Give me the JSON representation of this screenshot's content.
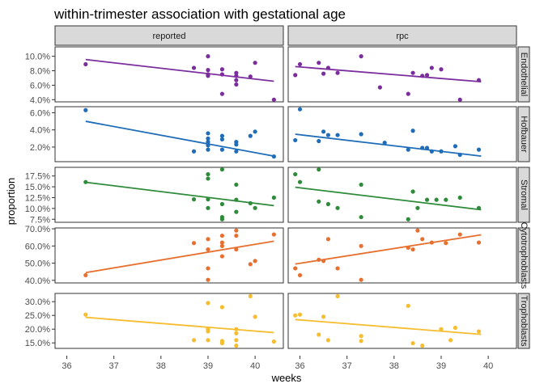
{
  "chart_data": {
    "type": "scatter",
    "title": "within-trimester association with gestational age",
    "xlabel": "weeks",
    "ylabel": "proportion",
    "xlim": [
      35.75,
      40.6
    ],
    "x_ticks": [
      "36",
      "37",
      "38",
      "39",
      "40"
    ],
    "x_tick_values": [
      36,
      37,
      38,
      39,
      40
    ],
    "columns": [
      "reported",
      "rpc"
    ],
    "grid": false,
    "facets": [
      {
        "row": "Endothelial",
        "color": "#7B2D9E",
        "ylim": [
          0.037,
          0.113
        ],
        "y_ticks": [
          0.04,
          0.06,
          0.08,
          0.1
        ],
        "y_tick_labels": [
          "4.0%",
          "6.0%",
          "8.0%",
          "10.0%"
        ],
        "panels": [
          {
            "column": "reported",
            "points": [
              [
                36.4,
                0.089
              ],
              [
                38.7,
                0.084
              ],
              [
                39.0,
                0.1
              ],
              [
                39.0,
                0.081
              ],
              [
                39.0,
                0.075
              ],
              [
                39.0,
                0.073
              ],
              [
                39.3,
                0.082
              ],
              [
                39.3,
                0.075
              ],
              [
                39.3,
                0.048
              ],
              [
                39.6,
                0.077
              ],
              [
                39.6,
                0.073
              ],
              [
                39.6,
                0.067
              ],
              [
                39.6,
                0.061
              ],
              [
                39.9,
                0.072
              ],
              [
                40.0,
                0.091
              ],
              [
                40.4,
                0.04
              ]
            ],
            "trend": [
              [
                36.4,
                0.0955
              ],
              [
                40.4,
                0.0655
              ]
            ]
          },
          {
            "column": "rpc",
            "points": [
              [
                35.9,
                0.074
              ],
              [
                36.0,
                0.089
              ],
              [
                36.4,
                0.091
              ],
              [
                36.5,
                0.076
              ],
              [
                36.6,
                0.084
              ],
              [
                36.8,
                0.077
              ],
              [
                37.3,
                0.1
              ],
              [
                37.7,
                0.057
              ],
              [
                38.3,
                0.048
              ],
              [
                38.4,
                0.077
              ],
              [
                38.6,
                0.073
              ],
              [
                38.7,
                0.074
              ],
              [
                38.8,
                0.084
              ],
              [
                39.0,
                0.082
              ],
              [
                39.4,
                0.04
              ],
              [
                39.8,
                0.067
              ]
            ],
            "trend": [
              [
                35.9,
                0.0858
              ],
              [
                39.85,
                0.0648
              ]
            ]
          }
        ]
      },
      {
        "row": "Hofbauer",
        "color": "#1F6DB8",
        "ylim": [
          0.003,
          0.067
        ],
        "y_ticks": [
          0.02,
          0.04,
          0.06
        ],
        "y_tick_labels": [
          "2.0%",
          "4.0%",
          "6.0%"
        ],
        "panels": [
          {
            "column": "reported",
            "points": [
              [
                36.4,
                0.063
              ],
              [
                38.7,
                0.015
              ],
              [
                39.0,
                0.036
              ],
              [
                39.0,
                0.03
              ],
              [
                39.0,
                0.026
              ],
              [
                39.0,
                0.022
              ],
              [
                39.0,
                0.017
              ],
              [
                39.3,
                0.033
              ],
              [
                39.3,
                0.029
              ],
              [
                39.3,
                0.017
              ],
              [
                39.6,
                0.026
              ],
              [
                39.6,
                0.023
              ],
              [
                39.6,
                0.015
              ],
              [
                39.9,
                0.033
              ],
              [
                40.0,
                0.038
              ],
              [
                40.4,
                0.009
              ]
            ],
            "trend": [
              [
                36.4,
                0.05
              ],
              [
                40.4,
                0.0095
              ]
            ]
          },
          {
            "column": "rpc",
            "points": [
              [
                35.9,
                0.028
              ],
              [
                36.0,
                0.064
              ],
              [
                36.4,
                0.027
              ],
              [
                36.5,
                0.038
              ],
              [
                36.6,
                0.034
              ],
              [
                36.8,
                0.034
              ],
              [
                37.3,
                0.035
              ],
              [
                37.8,
                0.025
              ],
              [
                38.3,
                0.017
              ],
              [
                38.4,
                0.039
              ],
              [
                38.6,
                0.019
              ],
              [
                38.7,
                0.019
              ],
              [
                38.8,
                0.015
              ],
              [
                39.0,
                0.015
              ],
              [
                39.3,
                0.021
              ],
              [
                39.4,
                0.011
              ],
              [
                39.8,
                0.017
              ]
            ],
            "trend": [
              [
                35.9,
                0.035
              ],
              [
                39.85,
                0.0095
              ]
            ]
          }
        ]
      },
      {
        "row": "Stromal",
        "color": "#2E8B3A",
        "ylim": [
          0.068,
          0.195
        ],
        "y_ticks": [
          0.075,
          0.1,
          0.125,
          0.15,
          0.175
        ],
        "y_tick_labels": [
          "7.5%",
          "10.0%",
          "12.5%",
          "15.0%",
          "17.5%"
        ],
        "panels": [
          {
            "column": "reported",
            "points": [
              [
                36.4,
                0.161
              ],
              [
                38.7,
                0.121
              ],
              [
                39.0,
                0.179
              ],
              [
                39.0,
                0.169
              ],
              [
                39.0,
                0.121
              ],
              [
                39.0,
                0.101
              ],
              [
                39.3,
                0.19
              ],
              [
                39.3,
                0.11
              ],
              [
                39.3,
                0.08
              ],
              [
                39.3,
                0.075
              ],
              [
                39.6,
                0.155
              ],
              [
                39.6,
                0.12
              ],
              [
                39.6,
                0.092
              ],
              [
                39.9,
                0.112
              ],
              [
                40.0,
                0.101
              ],
              [
                40.4,
                0.125
              ]
            ],
            "trend": [
              [
                36.4,
                0.1605
              ],
              [
                40.4,
                0.1065
              ]
            ]
          },
          {
            "column": "rpc",
            "points": [
              [
                35.9,
                0.179
              ],
              [
                36.0,
                0.161
              ],
              [
                36.4,
                0.19
              ],
              [
                36.4,
                0.116
              ],
              [
                36.6,
                0.11
              ],
              [
                36.8,
                0.101
              ],
              [
                37.3,
                0.08
              ],
              [
                37.3,
                0.155
              ],
              [
                38.3,
                0.075
              ],
              [
                38.4,
                0.139
              ],
              [
                38.5,
                0.101
              ],
              [
                38.7,
                0.12
              ],
              [
                38.9,
                0.12
              ],
              [
                39.1,
                0.12
              ],
              [
                39.4,
                0.125
              ],
              [
                39.8,
                0.101
              ]
            ],
            "trend": [
              [
                35.9,
                0.149
              ],
              [
                39.85,
                0.097
              ]
            ]
          }
        ]
      },
      {
        "row": "Cytotrophoblasts",
        "color": "#E8702E",
        "ylim": [
          0.385,
          0.705
        ],
        "y_ticks": [
          0.4,
          0.5,
          0.6,
          0.7
        ],
        "y_tick_labels": [
          "40.0%",
          "50.0%",
          "60.0%",
          "70.0%"
        ],
        "panels": [
          {
            "column": "reported",
            "points": [
              [
                36.4,
                0.43
              ],
              [
                38.7,
                0.617
              ],
              [
                39.0,
                0.64
              ],
              [
                39.0,
                0.58
              ],
              [
                39.0,
                0.47
              ],
              [
                39.0,
                0.403
              ],
              [
                39.3,
                0.66
              ],
              [
                39.3,
                0.62
              ],
              [
                39.3,
                0.6
              ],
              [
                39.3,
                0.54
              ],
              [
                39.6,
                0.69
              ],
              [
                39.6,
                0.66
              ],
              [
                39.6,
                0.58
              ],
              [
                39.9,
                0.494
              ],
              [
                40.0,
                0.513
              ],
              [
                40.4,
                0.667
              ]
            ],
            "trend": [
              [
                36.4,
                0.445
              ],
              [
                40.4,
                0.628
              ]
            ]
          },
          {
            "column": "rpc",
            "points": [
              [
                35.9,
                0.47
              ],
              [
                36.0,
                0.43
              ],
              [
                36.4,
                0.52
              ],
              [
                36.5,
                0.513
              ],
              [
                36.6,
                0.64
              ],
              [
                36.8,
                0.47
              ],
              [
                37.3,
                0.403
              ],
              [
                37.3,
                0.6
              ],
              [
                38.3,
                0.59
              ],
              [
                38.4,
                0.58
              ],
              [
                38.5,
                0.69
              ],
              [
                38.6,
                0.64
              ],
              [
                38.8,
                0.62
              ],
              [
                39.1,
                0.617
              ],
              [
                39.4,
                0.667
              ],
              [
                39.8,
                0.62
              ]
            ],
            "trend": [
              [
                35.9,
                0.495
              ],
              [
                39.85,
                0.665
              ]
            ]
          }
        ]
      },
      {
        "row": "Trophoblasts",
        "color": "#F5BD2F",
        "ylim": [
          0.13,
          0.33
        ],
        "y_ticks": [
          0.15,
          0.2,
          0.25,
          0.3
        ],
        "y_tick_labels": [
          "15.0%",
          "20.0%",
          "25.0%",
          "30.0%"
        ],
        "panels": [
          {
            "column": "reported",
            "points": [
              [
                36.4,
                0.253
              ],
              [
                38.7,
                0.16
              ],
              [
                39.0,
                0.295
              ],
              [
                39.0,
                0.2
              ],
              [
                39.0,
                0.192
              ],
              [
                39.0,
                0.16
              ],
              [
                39.3,
                0.28
              ],
              [
                39.3,
                0.157
              ],
              [
                39.3,
                0.149
              ],
              [
                39.6,
                0.2
              ],
              [
                39.6,
                0.185
              ],
              [
                39.6,
                0.16
              ],
              [
                39.6,
                0.14
              ],
              [
                39.9,
                0.32
              ],
              [
                40.0,
                0.245
              ],
              [
                40.4,
                0.155
              ]
            ],
            "trend": [
              [
                36.4,
                0.243
              ],
              [
                40.4,
                0.1875
              ]
            ]
          },
          {
            "column": "rpc",
            "points": [
              [
                35.9,
                0.25
              ],
              [
                36.0,
                0.253
              ],
              [
                36.4,
                0.18
              ],
              [
                36.5,
                0.245
              ],
              [
                36.6,
                0.16
              ],
              [
                36.8,
                0.32
              ],
              [
                37.3,
                0.175
              ],
              [
                37.3,
                0.157
              ],
              [
                38.3,
                0.285
              ],
              [
                38.4,
                0.149
              ],
              [
                38.6,
                0.14
              ],
              [
                39.0,
                0.2
              ],
              [
                39.2,
                0.16
              ],
              [
                39.3,
                0.205
              ],
              [
                39.8,
                0.192
              ]
            ],
            "trend": [
              [
                35.9,
                0.235
              ],
              [
                39.85,
                0.181
              ]
            ]
          }
        ]
      }
    ]
  }
}
